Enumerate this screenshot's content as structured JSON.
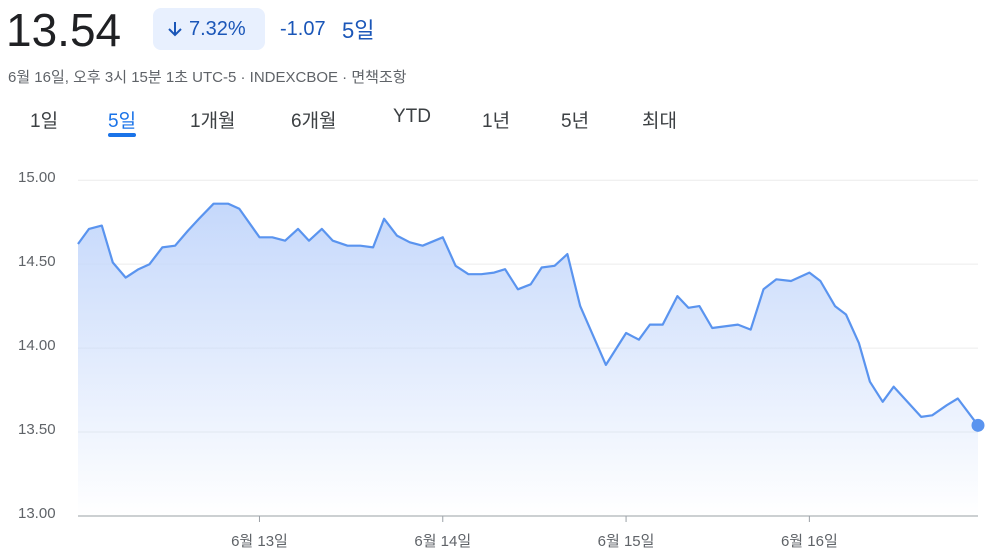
{
  "header": {
    "price": "13.54",
    "change_percent": "7.32%",
    "change": "-1.07",
    "period": "5일",
    "meta": "6월 16일, 오후 3시 15분 1초 UTC-5 · INDEXCBOE · 면책조항"
  },
  "tabs": [
    "1일",
    "5일",
    "1개월",
    "6개월",
    "YTD",
    "1년",
    "5년",
    "최대"
  ],
  "active_tab": 1,
  "chart_data": {
    "type": "line",
    "color": "#5a94ef",
    "x": [
      0.01,
      0.07,
      0.14,
      0.2,
      0.27,
      0.34,
      0.4,
      0.47,
      0.54,
      0.61,
      0.67,
      0.75,
      0.83,
      0.89,
      1.0,
      1.07,
      1.14,
      1.21,
      1.27,
      1.34,
      1.4,
      1.48,
      1.55,
      1.62,
      1.68,
      1.75,
      1.82,
      1.89,
      2.0,
      2.07,
      2.14,
      2.21,
      2.28,
      2.34,
      2.41,
      2.48,
      2.54,
      2.61,
      2.68,
      2.75,
      2.89,
      3.0,
      3.07,
      3.13,
      3.2,
      3.28,
      3.34,
      3.4,
      3.47,
      3.61,
      3.68,
      3.75,
      3.82,
      3.9,
      4.0,
      4.06,
      4.14,
      4.2,
      4.27,
      4.33,
      4.4,
      4.46,
      4.61,
      4.67,
      4.75,
      4.81,
      4.92
    ],
    "values": [
      14.62,
      14.71,
      14.73,
      14.51,
      14.42,
      14.47,
      14.5,
      14.6,
      14.61,
      14.7,
      14.77,
      14.86,
      14.86,
      14.83,
      14.66,
      14.66,
      14.64,
      14.71,
      14.64,
      14.71,
      14.64,
      14.61,
      14.61,
      14.6,
      14.77,
      14.67,
      14.63,
      14.61,
      14.66,
      14.49,
      14.44,
      14.44,
      14.45,
      14.47,
      14.35,
      14.38,
      14.48,
      14.49,
      14.56,
      14.25,
      13.9,
      14.09,
      14.05,
      14.14,
      14.14,
      14.31,
      14.24,
      14.25,
      14.12,
      14.14,
      14.11,
      14.35,
      14.41,
      14.4,
      14.45,
      14.4,
      14.25,
      14.2,
      14.03,
      13.8,
      13.68,
      13.77,
      13.59,
      13.6,
      13.66,
      13.7,
      13.54
    ],
    "xlim": [
      0.01,
      4.92
    ],
    "xticks": [
      {
        "value": 1,
        "label": "6월 13일"
      },
      {
        "value": 2,
        "label": "6월 14일"
      },
      {
        "value": 3,
        "label": "6월 15일"
      },
      {
        "value": 4,
        "label": "6월 16일"
      }
    ],
    "ylim": [
      13,
      15.18
    ],
    "yticks": [
      {
        "value": 13,
        "label": "13.00"
      },
      {
        "value": 13.5,
        "label": "13.50"
      },
      {
        "value": 14,
        "label": "14.00"
      },
      {
        "value": 14.5,
        "label": "14.50"
      },
      {
        "value": 15,
        "label": "15.00"
      }
    ],
    "grid": true
  }
}
